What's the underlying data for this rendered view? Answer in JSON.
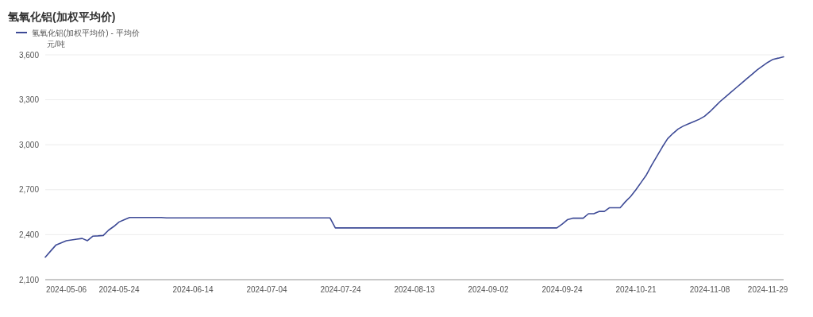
{
  "chart_data": {
    "type": "line",
    "title": "氢氧化铝(加权平均价)",
    "ylabel": "元/吨",
    "categories": [
      null,
      null,
      null,
      null,
      "2024-05-06",
      null,
      null,
      null,
      null,
      null,
      null,
      null,
      null,
      null,
      "2024-05-24",
      null,
      null,
      null,
      null,
      null,
      null,
      null,
      null,
      null,
      null,
      null,
      null,
      null,
      "2024-06-14",
      null,
      null,
      null,
      null,
      null,
      null,
      null,
      null,
      null,
      null,
      null,
      null,
      null,
      "2024-07-04",
      null,
      null,
      null,
      null,
      null,
      null,
      null,
      null,
      null,
      null,
      null,
      null,
      null,
      "2024-07-24",
      null,
      null,
      null,
      null,
      null,
      null,
      null,
      null,
      null,
      null,
      null,
      null,
      null,
      "2024-08-13",
      null,
      null,
      null,
      null,
      null,
      null,
      null,
      null,
      null,
      null,
      null,
      null,
      null,
      "2024-09-02",
      null,
      null,
      null,
      null,
      null,
      null,
      null,
      null,
      null,
      null,
      null,
      null,
      null,
      "2024-09-24",
      null,
      null,
      null,
      null,
      null,
      null,
      null,
      null,
      null,
      null,
      null,
      null,
      null,
      "2024-10-21",
      null,
      null,
      null,
      null,
      null,
      null,
      null,
      null,
      null,
      null,
      null,
      null,
      null,
      "2024-11-08",
      null,
      null,
      null,
      null,
      null,
      null,
      null,
      null,
      null,
      null,
      "2024-11-29",
      null,
      null,
      null
    ],
    "series": [
      {
        "name": "氢氧化铝(加权平均价) - 平均价",
        "color": "#3d4a96",
        "values": [
          2250,
          2290,
          2330,
          2345,
          2360,
          2365,
          2370,
          2375,
          2360,
          2390,
          2392,
          2395,
          2430,
          2455,
          2485,
          2500,
          2515,
          2515,
          2515,
          2515,
          2515,
          2515,
          2515,
          2512,
          2512,
          2512,
          2512,
          2512,
          2512,
          2512,
          2512,
          2512,
          2512,
          2512,
          2512,
          2512,
          2512,
          2512,
          2512,
          2512,
          2512,
          2512,
          2512,
          2512,
          2512,
          2512,
          2512,
          2512,
          2512,
          2512,
          2512,
          2512,
          2512,
          2512,
          2512,
          2445,
          2445,
          2445,
          2445,
          2445,
          2445,
          2445,
          2445,
          2445,
          2445,
          2445,
          2445,
          2445,
          2445,
          2445,
          2445,
          2445,
          2445,
          2445,
          2445,
          2445,
          2445,
          2445,
          2445,
          2445,
          2445,
          2445,
          2445,
          2445,
          2445,
          2445,
          2445,
          2445,
          2445,
          2445,
          2445,
          2445,
          2445,
          2445,
          2445,
          2445,
          2445,
          2445,
          2470,
          2500,
          2510,
          2510,
          2510,
          2540,
          2540,
          2555,
          2555,
          2580,
          2580,
          2580,
          2620,
          2655,
          2700,
          2750,
          2800,
          2865,
          2925,
          2985,
          3040,
          3075,
          3105,
          3125,
          3140,
          3155,
          3170,
          3190,
          3220,
          3255,
          3290,
          3320,
          3350,
          3380,
          3410,
          3440,
          3470,
          3500,
          3525,
          3550,
          3570,
          3578,
          3587
        ]
      }
    ],
    "ylim": [
      2100,
      3600
    ],
    "yticks": [
      {
        "value": 2100,
        "label": "2,100"
      },
      {
        "value": 2400,
        "label": "2,400"
      },
      {
        "value": 2700,
        "label": "2,700"
      },
      {
        "value": 3000,
        "label": "3,000"
      },
      {
        "value": 3300,
        "label": "3,300"
      },
      {
        "value": 3600,
        "label": "3,600"
      }
    ],
    "grid": "y",
    "legend": "top left",
    "marker": "none",
    "line_style": "solid"
  }
}
